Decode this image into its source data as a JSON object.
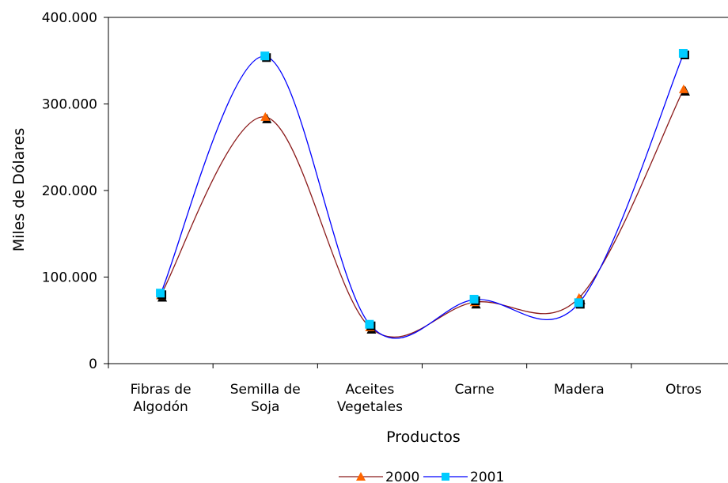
{
  "chart_data": {
    "type": "line",
    "title": "",
    "xlabel": "Productos",
    "ylabel": "Miles de Dólares",
    "categories": [
      [
        "Fibras de",
        "Algodón"
      ],
      [
        "Semilla de",
        "Soja"
      ],
      [
        "Aceites",
        "Vegetales"
      ],
      [
        "Carne"
      ],
      [
        "Madera"
      ],
      [
        "Otros"
      ]
    ],
    "ylim": [
      0,
      400000
    ],
    "yticks": [
      0,
      100000,
      200000,
      300000,
      400000
    ],
    "ytick_labels": [
      "0",
      "100.000",
      "200.000",
      "300.000",
      "400.000"
    ],
    "grid": false,
    "legend_position": "bottom",
    "smoothed": true,
    "series": [
      {
        "name": "2000",
        "values": [
          79000,
          285000,
          42000,
          71000,
          76000,
          317000
        ],
        "color": "#8b1a1a",
        "marker": "triangle",
        "marker_color": "#ff6600"
      },
      {
        "name": "2001",
        "values": [
          81000,
          355000,
          45000,
          74000,
          70000,
          358000
        ],
        "color": "#0000ff",
        "marker": "square",
        "marker_color": "#00ccff"
      }
    ]
  }
}
